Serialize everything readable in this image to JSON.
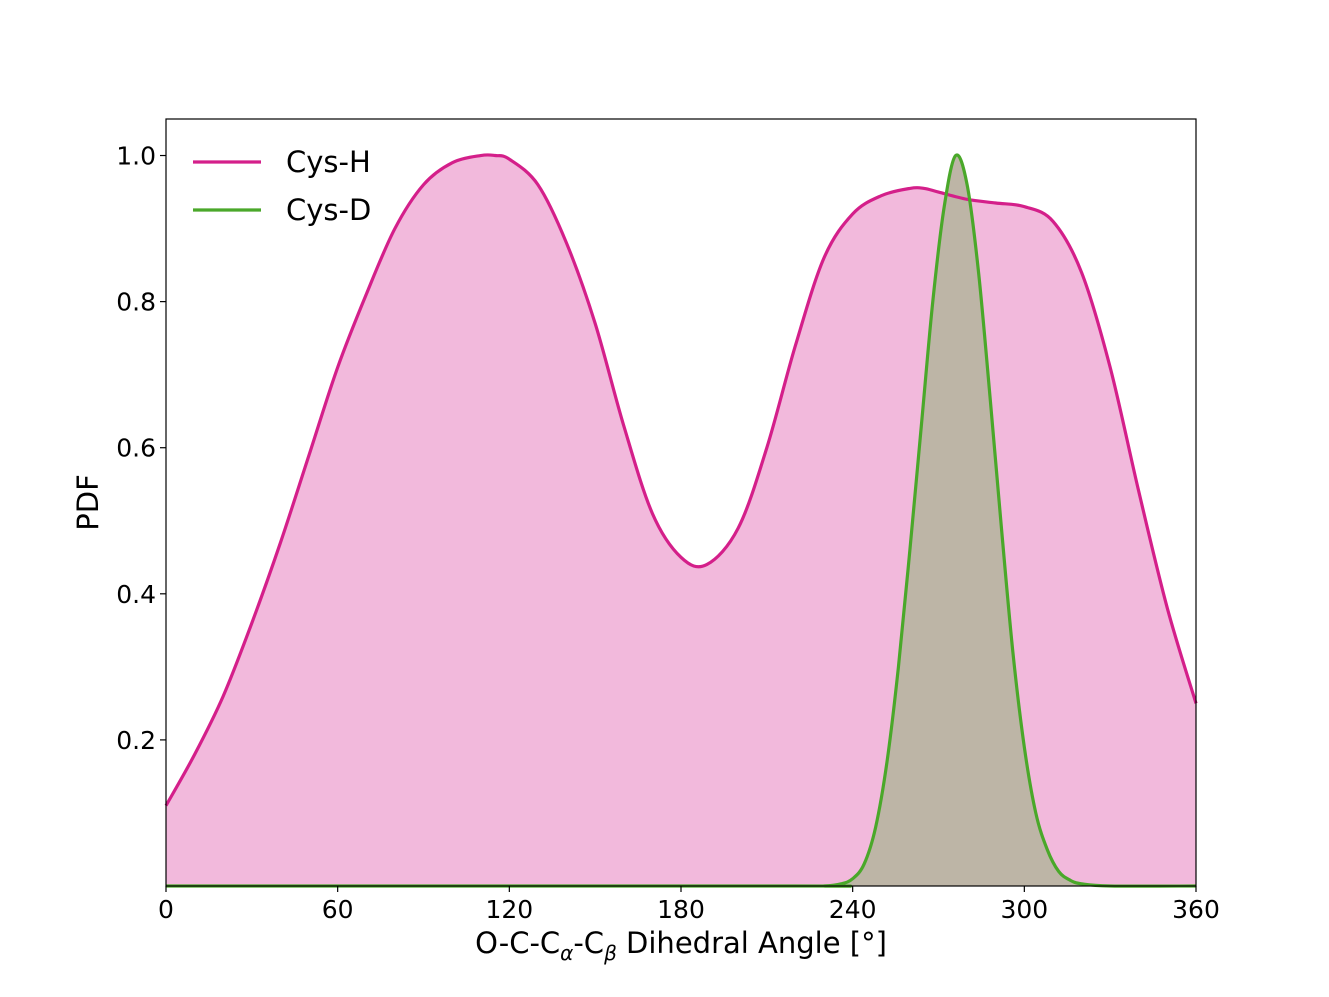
{
  "chart_data": {
    "type": "area",
    "title": "",
    "xlabel": {
      "prefix": "O-C-C",
      "sub1": "α",
      "middle": "-C",
      "sub2": "β",
      "suffix": " Dihedral Angle [°]"
    },
    "ylabel": "PDF",
    "xlim": [
      0,
      360
    ],
    "ylim": [
      0,
      1.05
    ],
    "xticks": [
      0,
      60,
      120,
      180,
      240,
      300,
      360
    ],
    "xtick_labels": [
      "0",
      "60",
      "120",
      "180",
      "240",
      "300",
      "360"
    ],
    "yticks": [
      0.2,
      0.4,
      0.6,
      0.8,
      1.0
    ],
    "ytick_labels": [
      "0.2",
      "0.4",
      "0.6",
      "0.8",
      "1.0"
    ],
    "grid": false,
    "legend_position": "top-left",
    "series": [
      {
        "name": "Cys-H",
        "color": "#d41f8a",
        "fill": "#f2b9dc",
        "x": [
          0,
          10,
          20,
          30,
          40,
          50,
          60,
          70,
          80,
          90,
          100,
          110,
          115,
          120,
          130,
          140,
          150,
          160,
          170,
          180,
          189,
          200,
          210,
          220,
          230,
          240,
          250,
          260,
          265,
          270,
          280,
          290,
          300,
          310,
          320,
          330,
          340,
          350,
          360
        ],
        "y": [
          0.11,
          0.18,
          0.26,
          0.36,
          0.47,
          0.59,
          0.71,
          0.81,
          0.9,
          0.96,
          0.99,
          1.0,
          1.0,
          0.995,
          0.96,
          0.88,
          0.77,
          0.63,
          0.51,
          0.45,
          0.44,
          0.49,
          0.6,
          0.74,
          0.86,
          0.92,
          0.945,
          0.955,
          0.955,
          0.95,
          0.94,
          0.935,
          0.93,
          0.91,
          0.84,
          0.71,
          0.54,
          0.38,
          0.25
        ]
      },
      {
        "name": "Cys-D",
        "color": "#4aa82a",
        "fill": "#bdb5a6",
        "x": [
          0,
          220,
          230,
          236,
          240,
          244,
          248,
          252,
          256,
          260,
          264,
          268,
          272,
          276,
          280,
          284,
          288,
          292,
          296,
          300,
          304,
          308,
          312,
          316,
          320,
          330,
          360
        ],
        "y": [
          0,
          0,
          0.0,
          0.003,
          0.01,
          0.03,
          0.08,
          0.17,
          0.3,
          0.46,
          0.63,
          0.8,
          0.93,
          1.0,
          0.96,
          0.84,
          0.67,
          0.49,
          0.32,
          0.19,
          0.1,
          0.05,
          0.02,
          0.008,
          0.003,
          0.0,
          0
        ]
      }
    ]
  }
}
